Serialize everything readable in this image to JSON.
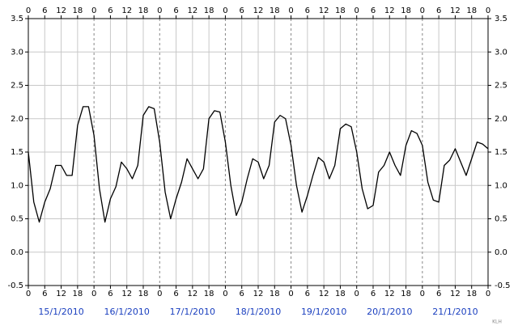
{
  "chart_data": {
    "type": "line",
    "x": [
      0,
      2,
      4,
      6,
      8,
      10,
      12,
      14,
      16,
      18,
      20,
      22,
      24,
      26,
      28,
      30,
      32,
      34,
      36,
      38,
      40,
      42,
      44,
      46,
      48,
      50,
      52,
      54,
      56,
      58,
      60,
      62,
      64,
      66,
      68,
      70,
      72,
      74,
      76,
      78,
      80,
      82,
      84,
      86,
      88,
      90,
      92,
      94,
      96,
      98,
      100,
      102,
      104,
      106,
      108,
      110,
      112,
      114,
      116,
      118,
      120,
      122,
      124,
      126,
      128,
      130,
      132,
      134,
      136,
      138,
      140,
      142,
      144,
      146,
      148,
      150,
      152,
      154,
      156,
      158,
      160,
      162,
      164,
      166,
      168
    ],
    "values": [
      1.5,
      0.75,
      0.45,
      0.75,
      0.95,
      1.3,
      1.3,
      1.15,
      1.15,
      1.9,
      2.18,
      2.18,
      1.75,
      0.95,
      0.45,
      0.8,
      0.98,
      1.35,
      1.25,
      1.1,
      1.3,
      2.05,
      2.18,
      2.15,
      1.65,
      0.9,
      0.5,
      0.8,
      1.05,
      1.4,
      1.25,
      1.1,
      1.25,
      2.0,
      2.12,
      2.1,
      1.65,
      1.0,
      0.55,
      0.75,
      1.1,
      1.4,
      1.35,
      1.1,
      1.3,
      1.95,
      2.05,
      2.0,
      1.6,
      1.0,
      0.6,
      0.85,
      1.15,
      1.42,
      1.35,
      1.1,
      1.3,
      1.85,
      1.92,
      1.88,
      1.5,
      0.95,
      0.65,
      0.7,
      1.2,
      1.3,
      1.5,
      1.3,
      1.15,
      1.6,
      1.82,
      1.78,
      1.6,
      1.05,
      0.78,
      0.75,
      1.3,
      1.38,
      1.55,
      1.35,
      1.15,
      1.4,
      1.65,
      1.62,
      1.55
    ],
    "color": "#000000",
    "xlim": [
      0,
      168
    ],
    "xticks": [
      0,
      6,
      12,
      18,
      {
        "value": 24,
        "label": "0"
      },
      {
        "value": 30,
        "label": "6"
      },
      {
        "value": 36,
        "label": "12"
      },
      {
        "value": 42,
        "label": "18"
      },
      {
        "value": 48,
        "label": "0"
      },
      {
        "value": 54,
        "label": "6"
      },
      {
        "value": 60,
        "label": "12"
      },
      {
        "value": 66,
        "label": "18"
      },
      {
        "value": 72,
        "label": "0"
      },
      {
        "value": 78,
        "label": "6"
      },
      {
        "value": 84,
        "label": "12"
      },
      {
        "value": 90,
        "label": "18"
      },
      {
        "value": 96,
        "label": "0"
      },
      {
        "value": 102,
        "label": "6"
      },
      {
        "value": 108,
        "label": "12"
      },
      {
        "value": 114,
        "label": "18"
      },
      {
        "value": 120,
        "label": "0"
      },
      {
        "value": 126,
        "label": "6"
      },
      {
        "value": 132,
        "label": "12"
      },
      {
        "value": 138,
        "label": "18"
      },
      {
        "value": 144,
        "label": "0"
      },
      {
        "value": 150,
        "label": "6"
      },
      {
        "value": 156,
        "label": "12"
      },
      {
        "value": 162,
        "label": "18"
      },
      {
        "value": 168,
        "label": "0"
      }
    ],
    "ylim": [
      -0.5,
      3.5
    ],
    "yticks": [
      -0.5,
      {
        "value": 0,
        "label": "0.0"
      },
      0.5,
      {
        "value": 1,
        "label": "1.0"
      },
      1.5,
      {
        "value": 2,
        "label": "2.0"
      },
      2.5,
      {
        "value": 3,
        "label": "3.0"
      },
      3.5
    ],
    "day_labels": [
      "15/1/2010",
      "16/1/2010",
      "17/1/2010",
      "18/1/2010",
      "19/1/2010",
      "20/1/2010",
      "21/1/2010"
    ],
    "credit": "KLH",
    "grid": true
  }
}
